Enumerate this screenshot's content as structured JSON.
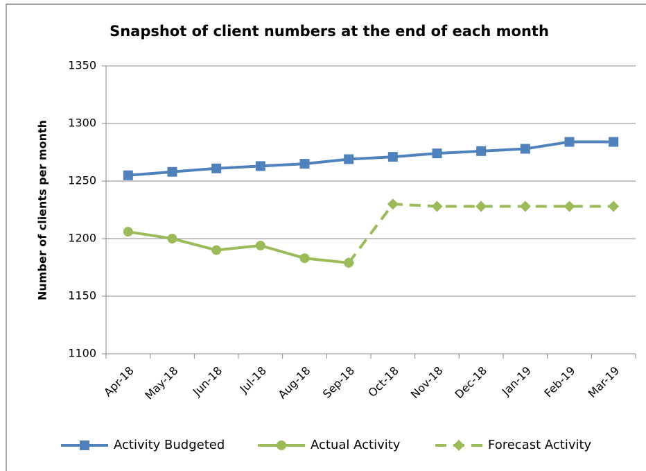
{
  "chart_data": {
    "type": "line",
    "title": "Snapshot of client numbers at the end of each month",
    "y_label": "Number of clients per month",
    "categories": [
      "Apr-18",
      "May-18",
      "Jun-18",
      "Jul-18",
      "Aug-18",
      "Sep-18",
      "Oct-18",
      "Nov-18",
      "Dec-18",
      "Jan-19",
      "Feb-19",
      "Mar-19"
    ],
    "series": [
      {
        "name": "Activity Budgeted",
        "color": "#4f81bd",
        "marker": "square",
        "dashed": false,
        "values": [
          1255,
          1258,
          1261,
          1263,
          1265,
          1269,
          1271,
          1274,
          1276,
          1278,
          1284,
          1284
        ]
      },
      {
        "name": "Actual Activity",
        "color": "#9bbb59",
        "marker": "circle",
        "dashed": false,
        "values": [
          1206,
          1200,
          1190,
          1194,
          1183,
          1179,
          null,
          null,
          null,
          null,
          null,
          null
        ]
      },
      {
        "name": "Forecast Activity",
        "color": "#9bbb59",
        "marker": "diamond",
        "dashed": true,
        "values": [
          null,
          null,
          null,
          null,
          null,
          1179,
          1230,
          1228,
          1228,
          1228,
          1228,
          1228
        ]
      }
    ],
    "ylim": [
      1100,
      1350
    ],
    "yticks": [
      1100,
      1150,
      1200,
      1250,
      1300,
      1350
    ],
    "grid": true,
    "legend": "bottom"
  }
}
